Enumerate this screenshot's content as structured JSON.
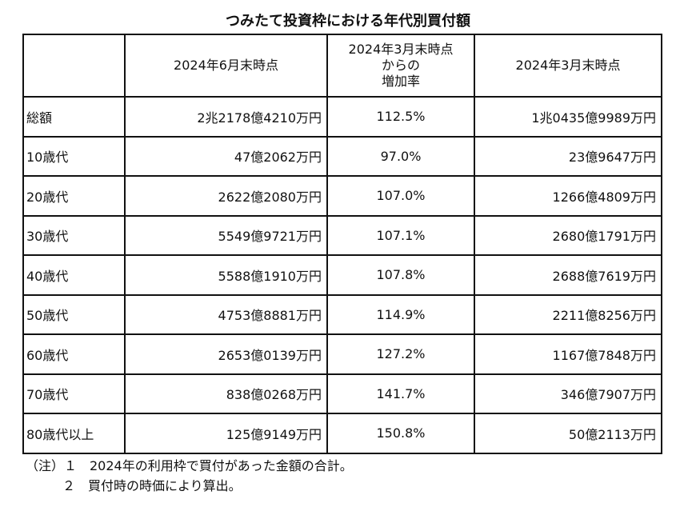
{
  "title": "つみたて投資枠における年代別買付額",
  "headers": [
    "",
    "2024年6月末時点",
    "2024年3月末時点\nからの\n増加率",
    "2024年3月末時点"
  ],
  "rows": [
    [
      "総額",
      "2兆2178億4210万円",
      "112.5%",
      "1兆0435億9989万円"
    ],
    [
      "10歳代",
      "47億2062万円",
      "97.0%",
      "23億9647万円"
    ],
    [
      "20歳代",
      "2622億2080万円",
      "107.0%",
      "1266億4809万円"
    ],
    [
      "30歳代",
      "5549億9721万円",
      "107.1%",
      "2680億1791万円"
    ],
    [
      "40歳代",
      "5588億1910万円",
      "107.8%",
      "2688億7619万円"
    ],
    [
      "50歳代",
      "4753億8881万円",
      "114.9%",
      "2211億8256万円"
    ],
    [
      "60歳代",
      "2653億0139万円",
      "127.2%",
      "1167億7848万円"
    ],
    [
      "70歳代",
      "838億0268万円",
      "141.7%",
      "346億7907万円"
    ],
    [
      "80歳代以上",
      "125億9149万円",
      "150.8%",
      "50億2113万円"
    ]
  ],
  "notes": [
    "（注）１　2024年の利用枠で買付があった金額の合計。",
    "２　買付時の時価により算出。"
  ]
}
